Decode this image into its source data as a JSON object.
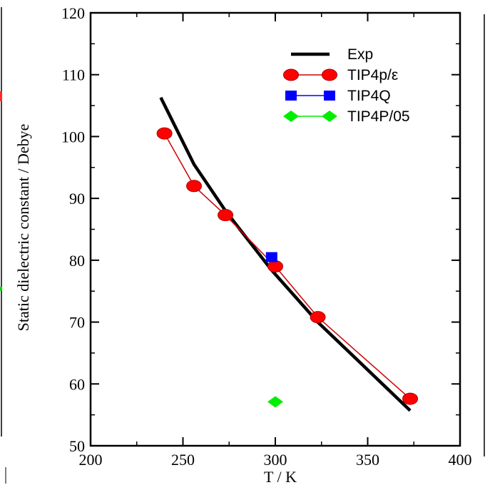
{
  "chart_data": {
    "type": "line",
    "xlabel": "T / K",
    "ylabel": "Static dielectric constant / Debye",
    "xlim": [
      200,
      400
    ],
    "ylim": [
      50,
      120
    ],
    "xticks": [
      200,
      250,
      300,
      350,
      400
    ],
    "yticks": [
      50,
      60,
      70,
      80,
      90,
      100,
      110,
      120
    ],
    "legend_position": "top-right",
    "series": [
      {
        "name": "Exp",
        "style": "line",
        "color": "#000000",
        "x": [
          238,
          256,
          273,
          298,
          323,
          373
        ],
        "y": [
          106.3,
          95.5,
          88.0,
          78.4,
          70.0,
          55.7
        ]
      },
      {
        "name": "TIP4p/ε",
        "style": "line-marker",
        "marker": "circle",
        "color": "#ff0000",
        "line_color": "#cc0000",
        "x": [
          240,
          256,
          273,
          300,
          323,
          373
        ],
        "y": [
          100.5,
          92.0,
          87.3,
          79.0,
          70.8,
          57.6
        ]
      },
      {
        "name": "TIP4Q",
        "style": "line-marker",
        "marker": "square",
        "color": "#0000ff",
        "x": [
          298
        ],
        "y": [
          80.5
        ]
      },
      {
        "name": "TIP4P/05",
        "style": "line-marker",
        "marker": "diamond",
        "color": "#00ee00",
        "x": [
          300
        ],
        "y": [
          57.1
        ]
      }
    ]
  }
}
